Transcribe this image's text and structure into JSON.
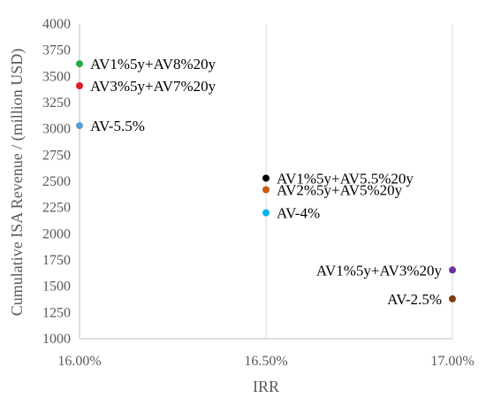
{
  "chart_data": {
    "type": "scatter",
    "title": "",
    "xlabel": "IRR",
    "ylabel": "Cumulative ISA Revenue / (million USD)",
    "xlim": [
      0.16,
      0.17
    ],
    "ylim": [
      1000,
      4000
    ],
    "x_ticks": [
      0.16,
      0.165,
      0.17
    ],
    "x_tick_labels": [
      "16.00%",
      "16.50%",
      "17.00%"
    ],
    "y_ticks": [
      1000,
      1250,
      1500,
      1750,
      2000,
      2250,
      2500,
      2750,
      3000,
      3250,
      3500,
      3750,
      4000
    ],
    "y_tick_labels": [
      "1000",
      "1250",
      "1500",
      "1750",
      "2000",
      "2250",
      "2500",
      "2750",
      "3000",
      "3250",
      "3500",
      "3750",
      "4000"
    ],
    "grid": "vertical",
    "legend": "none",
    "points": [
      {
        "label": "AV1%5y+AV8%20y",
        "x": 0.16,
        "y": 3620,
        "color": "#1faa4b",
        "label_side": "right"
      },
      {
        "label": "AV3%5y+AV7%20y",
        "x": 0.16,
        "y": 3410,
        "color": "#e31a1c",
        "label_side": "right"
      },
      {
        "label": "AV-5.5%",
        "x": 0.16,
        "y": 3030,
        "color": "#5b9bd5",
        "label_side": "right"
      },
      {
        "label": "AV1%5y+AV5.5%20y",
        "x": 0.165,
        "y": 2530,
        "color": "#000000",
        "label_side": "right"
      },
      {
        "label": "AV2%5y+AV5%20y",
        "x": 0.165,
        "y": 2420,
        "color": "#c55a11",
        "label_side": "right"
      },
      {
        "label": "AV-4%",
        "x": 0.165,
        "y": 2200,
        "color": "#00b0f0",
        "label_side": "right"
      },
      {
        "label": "AV1%5y+AV3%20y",
        "x": 0.17,
        "y": 1655,
        "color": "#7030a0",
        "label_side": "left"
      },
      {
        "label": "AV-2.5%",
        "x": 0.17,
        "y": 1380,
        "color": "#843c0c",
        "label_side": "left"
      }
    ]
  }
}
